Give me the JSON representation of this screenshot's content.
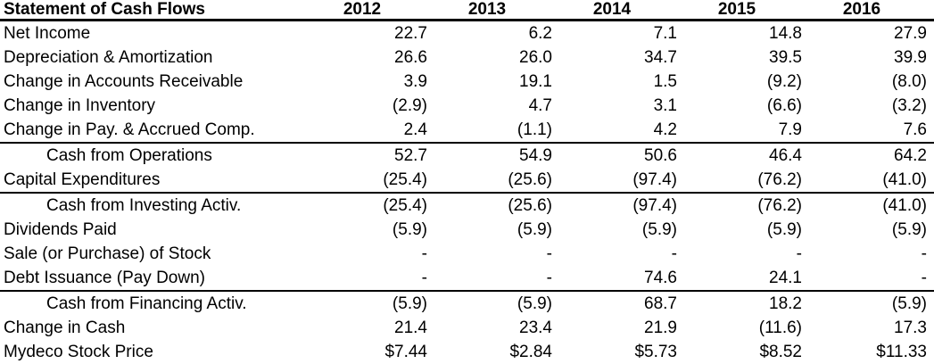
{
  "colors": {
    "background": "#ffffff",
    "text": "#000000",
    "rule_lines": "#000000"
  },
  "table": {
    "title": "Statement of Cash Flows",
    "header": {
      "label": "Statement of Cash Flows",
      "years": [
        "2012",
        "2013",
        "2014",
        "2015",
        "2016"
      ]
    },
    "rows": [
      {
        "label": "Net Income",
        "indent": false,
        "separator_above": false,
        "values": [
          "22.7",
          "6.2",
          "7.1",
          "14.8",
          "27.9"
        ]
      },
      {
        "label": "Depreciation & Amortization",
        "indent": false,
        "separator_above": false,
        "values": [
          "26.6",
          "26.0",
          "34.7",
          "39.5",
          "39.9"
        ]
      },
      {
        "label": "Change in Accounts Receivable",
        "indent": false,
        "separator_above": false,
        "values": [
          "3.9",
          "19.1",
          "1.5",
          "(9.2)",
          "(8.0)"
        ]
      },
      {
        "label": "Change in Inventory",
        "indent": false,
        "separator_above": false,
        "values": [
          "(2.9)",
          "4.7",
          "3.1",
          "(6.6)",
          "(3.2)"
        ]
      },
      {
        "label": "Change in Pay. & Accrued Comp.",
        "indent": false,
        "separator_above": false,
        "values": [
          "2.4",
          "(1.1)",
          "4.2",
          "7.9",
          "7.6"
        ]
      },
      {
        "label": "Cash from Operations",
        "indent": true,
        "separator_above": true,
        "values": [
          "52.7",
          "54.9",
          "50.6",
          "46.4",
          "64.2"
        ]
      },
      {
        "label": "Capital Expenditures",
        "indent": false,
        "separator_above": false,
        "values": [
          "(25.4)",
          "(25.6)",
          "(97.4)",
          "(76.2)",
          "(41.0)"
        ]
      },
      {
        "label": "Cash from Investing Activ.",
        "indent": true,
        "separator_above": true,
        "values": [
          "(25.4)",
          "(25.6)",
          "(97.4)",
          "(76.2)",
          "(41.0)"
        ]
      },
      {
        "label": "Dividends Paid",
        "indent": false,
        "separator_above": false,
        "values": [
          "(5.9)",
          "(5.9)",
          "(5.9)",
          "(5.9)",
          "(5.9)"
        ]
      },
      {
        "label": "Sale (or Purchase) of Stock",
        "indent": false,
        "separator_above": false,
        "values": [
          "-",
          "-",
          "-",
          "-",
          "-"
        ]
      },
      {
        "label": "Debt Issuance (Pay Down)",
        "indent": false,
        "separator_above": false,
        "values": [
          "-",
          "-",
          "74.6",
          "24.1",
          "-"
        ]
      },
      {
        "label": "Cash from Financing Activ.",
        "indent": true,
        "separator_above": true,
        "values": [
          "(5.9)",
          "(5.9)",
          "68.7",
          "18.2",
          "(5.9)"
        ]
      },
      {
        "label": "Change in Cash",
        "indent": false,
        "separator_above": false,
        "values": [
          "21.4",
          "23.4",
          "21.9",
          "(11.6)",
          "17.3"
        ]
      },
      {
        "label": "Mydeco Stock Price",
        "indent": false,
        "separator_above": false,
        "values": [
          "$7.44",
          "$2.84",
          "$5.73",
          "$8.52",
          "$11.33"
        ]
      }
    ]
  }
}
